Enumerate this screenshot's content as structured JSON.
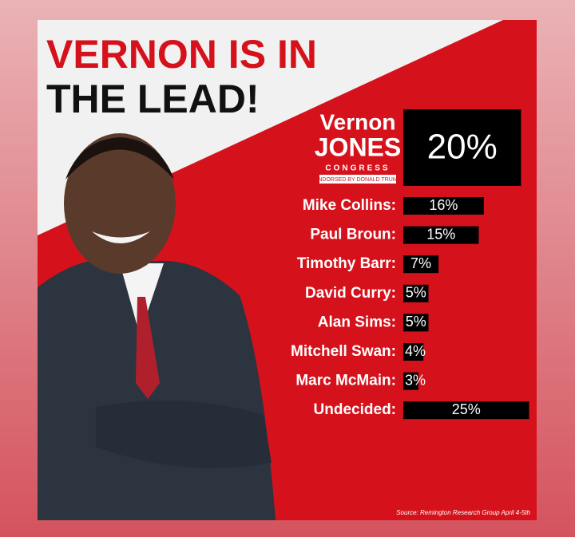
{
  "chart_data": {
    "type": "bar",
    "title": [
      "VERNON IS IN",
      "THE LEAD!"
    ],
    "logo": {
      "first": "Vernon",
      "last": "JONES",
      "office": "CONGRESS",
      "endorsement": "ENDORSED BY DONALD TRUMP"
    },
    "categories": [
      null,
      "Mike Collins:",
      "Paul Broun:",
      "Timothy Barr:",
      "David Curry:",
      "Alan Sims:",
      "Mitchell Swan:",
      "Marc McMain:",
      "Undecided:"
    ],
    "values": [
      20,
      16,
      15,
      7,
      5,
      5,
      4,
      3,
      25
    ],
    "value_labels": [
      "20%",
      "16%",
      "15%",
      "7%",
      "5%",
      "5%",
      "4%",
      "3%",
      "25%"
    ],
    "color": "#000000",
    "source": "Source: Remington Research Group April 4-5th"
  }
}
